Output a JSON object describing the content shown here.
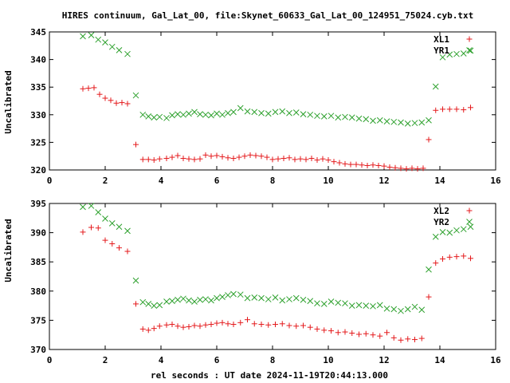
{
  "title": "HIRES continuum, Gal_Lat_00, file:Skynet_60633_Gal_Lat_00_124951_75024.cyb.txt",
  "xlabel": "rel seconds : UT date 2024-11-19T20:44:13.000",
  "colors": {
    "red": "#e41a1c",
    "green": "#2ca02c",
    "grid": "#000000"
  },
  "chart_data": [
    {
      "type": "scatter",
      "ylabel": "Uncalibrated",
      "xlim": [
        0,
        16
      ],
      "ylim": [
        320,
        345
      ],
      "xticks": [
        0,
        2,
        4,
        6,
        8,
        10,
        12,
        14,
        16
      ],
      "yticks": [
        320,
        325,
        330,
        335,
        340,
        345
      ],
      "legend_position": "top-right",
      "series": [
        {
          "name": "XL1",
          "marker": "plus",
          "color": "#e41a1c",
          "x": [
            1.2,
            1.4,
            1.6,
            1.8,
            2.0,
            2.2,
            2.4,
            2.6,
            2.8,
            3.1,
            3.35,
            3.55,
            3.75,
            3.95,
            4.2,
            4.4,
            4.6,
            4.8,
            5.0,
            5.2,
            5.4,
            5.6,
            5.8,
            6.0,
            6.2,
            6.4,
            6.6,
            6.8,
            7.0,
            7.2,
            7.4,
            7.6,
            7.8,
            8.0,
            8.2,
            8.4,
            8.6,
            8.8,
            9.0,
            9.2,
            9.4,
            9.6,
            9.8,
            10.0,
            10.2,
            10.4,
            10.6,
            10.8,
            11.0,
            11.2,
            11.4,
            11.6,
            11.8,
            12.0,
            12.2,
            12.4,
            12.6,
            12.8,
            13.0,
            13.2,
            13.4,
            13.6,
            13.85,
            14.1,
            14.35,
            14.6,
            14.85,
            15.1
          ],
          "y": [
            334.7,
            334.8,
            334.9,
            333.7,
            333.0,
            332.6,
            332.1,
            332.2,
            332.0,
            324.6,
            321.9,
            321.9,
            321.8,
            322.0,
            322.1,
            322.3,
            322.6,
            322.1,
            322.0,
            321.9,
            322.0,
            322.7,
            322.5,
            322.6,
            322.4,
            322.2,
            322.1,
            322.3,
            322.5,
            322.7,
            322.6,
            322.5,
            322.3,
            321.9,
            322.0,
            322.1,
            322.2,
            321.9,
            322.0,
            321.9,
            322.1,
            321.8,
            322.0,
            321.8,
            321.5,
            321.3,
            321.1,
            321.0,
            321.0,
            320.9,
            320.8,
            320.9,
            320.8,
            320.7,
            320.5,
            320.4,
            320.3,
            320.2,
            320.3,
            320.2,
            320.3,
            325.5,
            330.8,
            331.0,
            331.0,
            331.0,
            330.9,
            331.3
          ]
        },
        {
          "name": "YR1",
          "marker": "cross",
          "color": "#2ca02c",
          "x": [
            1.2,
            1.5,
            1.75,
            2.0,
            2.25,
            2.5,
            2.8,
            3.1,
            3.35,
            3.55,
            3.75,
            3.95,
            4.2,
            4.4,
            4.6,
            4.8,
            5.0,
            5.2,
            5.4,
            5.6,
            5.8,
            6.0,
            6.2,
            6.4,
            6.6,
            6.85,
            7.1,
            7.35,
            7.6,
            7.85,
            8.1,
            8.35,
            8.6,
            8.85,
            9.1,
            9.35,
            9.6,
            9.85,
            10.1,
            10.35,
            10.6,
            10.85,
            11.1,
            11.35,
            11.6,
            11.85,
            12.1,
            12.35,
            12.6,
            12.85,
            13.1,
            13.35,
            13.6,
            13.85,
            14.1,
            14.35,
            14.6,
            14.85,
            15.1
          ],
          "y": [
            344.2,
            344.4,
            343.6,
            343.1,
            342.3,
            341.7,
            341.0,
            333.5,
            330.0,
            329.7,
            329.5,
            329.6,
            329.4,
            329.9,
            330.1,
            330.0,
            330.2,
            330.5,
            330.1,
            330.0,
            329.9,
            330.2,
            330.0,
            330.3,
            330.5,
            331.2,
            330.6,
            330.5,
            330.3,
            330.2,
            330.5,
            330.6,
            330.3,
            330.4,
            330.1,
            330.0,
            329.8,
            329.7,
            329.8,
            329.5,
            329.6,
            329.5,
            329.3,
            329.2,
            328.9,
            329.0,
            328.8,
            328.7,
            328.6,
            328.4,
            328.5,
            328.6,
            329.0,
            335.1,
            340.4,
            340.9,
            341.0,
            341.1,
            341.6
          ]
        }
      ]
    },
    {
      "type": "scatter",
      "ylabel": "Uncalibrated",
      "xlim": [
        0,
        16
      ],
      "ylim": [
        370,
        395
      ],
      "xticks": [
        0,
        2,
        4,
        6,
        8,
        10,
        12,
        14,
        16
      ],
      "yticks": [
        370,
        375,
        380,
        385,
        390,
        395
      ],
      "legend_position": "top-right",
      "series": [
        {
          "name": "XL2",
          "marker": "plus",
          "color": "#e41a1c",
          "x": [
            1.2,
            1.5,
            1.75,
            2.0,
            2.25,
            2.5,
            2.8,
            3.1,
            3.35,
            3.55,
            3.75,
            3.95,
            4.2,
            4.4,
            4.6,
            4.8,
            5.0,
            5.2,
            5.4,
            5.6,
            5.8,
            6.0,
            6.2,
            6.4,
            6.6,
            6.85,
            7.1,
            7.35,
            7.6,
            7.85,
            8.1,
            8.35,
            8.6,
            8.85,
            9.1,
            9.35,
            9.6,
            9.85,
            10.1,
            10.35,
            10.6,
            10.85,
            11.1,
            11.35,
            11.6,
            11.85,
            12.1,
            12.35,
            12.6,
            12.85,
            13.1,
            13.35,
            13.6,
            13.85,
            14.1,
            14.35,
            14.6,
            14.85,
            15.1
          ],
          "y": [
            390.1,
            390.9,
            390.8,
            388.7,
            388.1,
            387.4,
            386.8,
            377.8,
            373.5,
            373.3,
            373.6,
            374.0,
            374.2,
            374.3,
            374.0,
            373.8,
            373.9,
            374.1,
            374.0,
            374.2,
            374.3,
            374.5,
            374.6,
            374.4,
            374.3,
            374.6,
            375.1,
            374.4,
            374.3,
            374.2,
            374.3,
            374.4,
            374.1,
            374.0,
            374.1,
            373.8,
            373.5,
            373.3,
            373.2,
            372.9,
            373.0,
            372.8,
            372.6,
            372.7,
            372.5,
            372.3,
            372.9,
            372.0,
            371.6,
            371.8,
            371.7,
            371.9,
            379.0,
            384.8,
            385.5,
            385.8,
            385.9,
            386.0,
            385.6
          ]
        },
        {
          "name": "YR2",
          "marker": "cross",
          "color": "#2ca02c",
          "x": [
            1.2,
            1.5,
            1.75,
            2.0,
            2.25,
            2.5,
            2.8,
            3.1,
            3.35,
            3.55,
            3.75,
            3.95,
            4.2,
            4.4,
            4.6,
            4.8,
            5.0,
            5.2,
            5.4,
            5.6,
            5.8,
            6.0,
            6.2,
            6.4,
            6.6,
            6.85,
            7.1,
            7.35,
            7.6,
            7.85,
            8.1,
            8.35,
            8.6,
            8.85,
            9.1,
            9.35,
            9.6,
            9.85,
            10.1,
            10.35,
            10.6,
            10.85,
            11.1,
            11.35,
            11.6,
            11.85,
            12.1,
            12.35,
            12.6,
            12.85,
            13.1,
            13.35,
            13.6,
            13.85,
            14.1,
            14.35,
            14.6,
            14.85,
            15.1
          ],
          "y": [
            394.4,
            394.6,
            393.5,
            392.4,
            391.6,
            391.0,
            390.3,
            381.8,
            378.1,
            377.8,
            377.5,
            377.6,
            378.2,
            378.3,
            378.5,
            378.7,
            378.4,
            378.2,
            378.5,
            378.6,
            378.4,
            378.8,
            379.0,
            379.3,
            379.5,
            379.4,
            378.8,
            378.9,
            378.8,
            378.6,
            378.9,
            378.4,
            378.6,
            378.8,
            378.5,
            378.3,
            377.9,
            377.8,
            378.2,
            378.0,
            377.9,
            377.5,
            377.6,
            377.5,
            377.4,
            377.6,
            377.0,
            376.9,
            376.6,
            376.9,
            377.3,
            376.8,
            383.7,
            389.3,
            390.1,
            390.0,
            390.4,
            390.6,
            391.0
          ]
        }
      ]
    }
  ]
}
